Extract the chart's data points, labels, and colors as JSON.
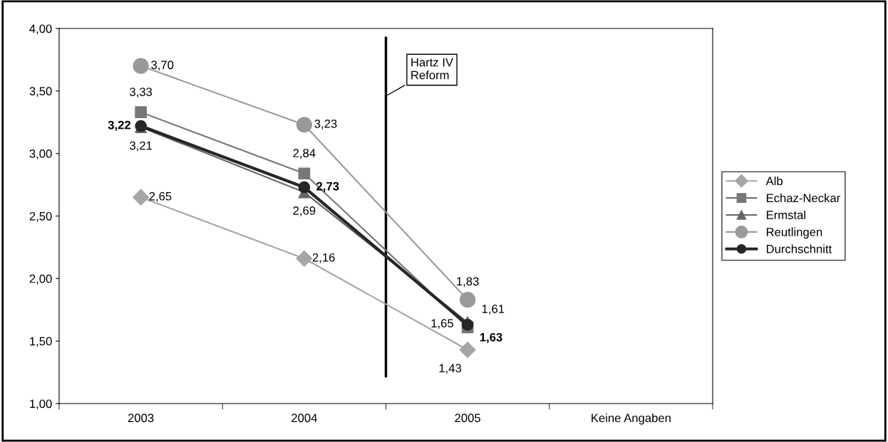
{
  "chart_data": {
    "type": "line",
    "categories": [
      "2003",
      "2004",
      "2005",
      "Keine Angaben"
    ],
    "series": [
      {
        "name": "Alb",
        "color": "#a6a6a6",
        "marker": "diamond",
        "values": [
          2.65,
          2.16,
          1.43,
          null
        ],
        "value_labels": [
          "2,65",
          "2,16",
          "1,43",
          null
        ]
      },
      {
        "name": "Echaz-Neckar",
        "color": "#777777",
        "marker": "square",
        "values": [
          3.33,
          2.84,
          1.61,
          null
        ],
        "value_labels": [
          "3,33",
          "2,84",
          "1,61",
          null
        ]
      },
      {
        "name": "Ermstal",
        "color": "#666666",
        "marker": "triangle",
        "values": [
          3.21,
          2.69,
          1.65,
          null
        ],
        "value_labels": [
          "3,21",
          "2,69",
          "1,65",
          null
        ]
      },
      {
        "name": "Reutlingen",
        "color": "#999999",
        "marker": "circle",
        "values": [
          3.7,
          3.23,
          1.83,
          null
        ],
        "value_labels": [
          "3,70",
          "3,23",
          "1,83",
          null
        ]
      },
      {
        "name": "Durchschnitt",
        "color": "#262626",
        "marker": "circle",
        "values": [
          3.22,
          2.73,
          1.63,
          null
        ],
        "value_labels": [
          "3,22",
          "2,73",
          "1,63",
          null
        ]
      }
    ],
    "ylim": [
      1.0,
      4.0
    ],
    "yticks": [
      {
        "value": 1.0,
        "label": "1,00"
      },
      {
        "value": 1.5,
        "label": "1,50"
      },
      {
        "value": 2.0,
        "label": "2,00"
      },
      {
        "value": 2.5,
        "label": "2,50"
      },
      {
        "value": 3.0,
        "label": "3,00"
      },
      {
        "value": 3.5,
        "label": "3,50"
      },
      {
        "value": 4.0,
        "label": "4,00"
      }
    ],
    "annotations": [
      "Hartz IV\nReform"
    ],
    "grid": false,
    "legend": "right",
    "line_style": "solid"
  }
}
